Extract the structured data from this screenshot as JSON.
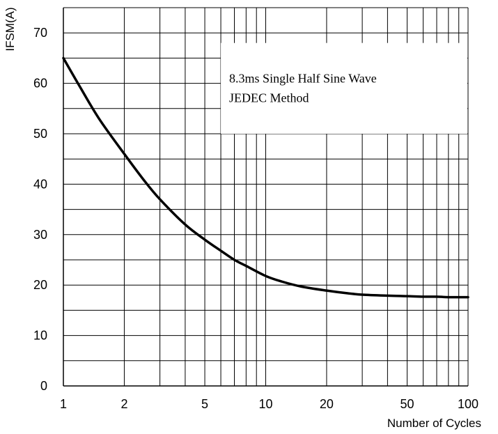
{
  "chart_data": {
    "type": "line",
    "ylabel": "IFSM(A)",
    "xlabel": "Number of Cycles",
    "x_scale": "log",
    "xlim": [
      1,
      100
    ],
    "ylim": [
      0,
      75
    ],
    "grid": true,
    "x_tick_labels": [
      "1",
      "2",
      "5",
      "10",
      "20",
      "50",
      "100"
    ],
    "x_tick_values": [
      1,
      2,
      5,
      10,
      20,
      50,
      100
    ],
    "x_grid_values": [
      1,
      2,
      3,
      4,
      5,
      6,
      7,
      8,
      9,
      10,
      20,
      30,
      40,
      50,
      60,
      70,
      80,
      90,
      100
    ],
    "y_tick_labels": [
      "0",
      "10",
      "20",
      "30",
      "40",
      "50",
      "60",
      "70"
    ],
    "y_tick_values": [
      0,
      10,
      20,
      30,
      40,
      50,
      60,
      70
    ],
    "y_grid_values": [
      0,
      5,
      10,
      15,
      20,
      25,
      30,
      35,
      40,
      45,
      50,
      55,
      60,
      65,
      70,
      75
    ],
    "annotation": {
      "line1": "8.3ms Single Half Sine Wave",
      "line2": "JEDEC Method"
    },
    "series": [
      {
        "x": [
          1,
          1.2,
          1.5,
          2,
          2.5,
          3,
          4,
          5,
          6,
          7,
          8,
          10,
          12,
          15,
          20,
          25,
          30,
          40,
          50,
          60,
          70,
          80,
          100
        ],
        "y": [
          65,
          59.5,
          53,
          46,
          40.8,
          37,
          32,
          29,
          26.8,
          25,
          23.8,
          21.8,
          20.7,
          19.7,
          18.9,
          18.4,
          18.1,
          17.9,
          17.8,
          17.7,
          17.7,
          17.6,
          17.6
        ],
        "color": "#000000"
      }
    ]
  }
}
